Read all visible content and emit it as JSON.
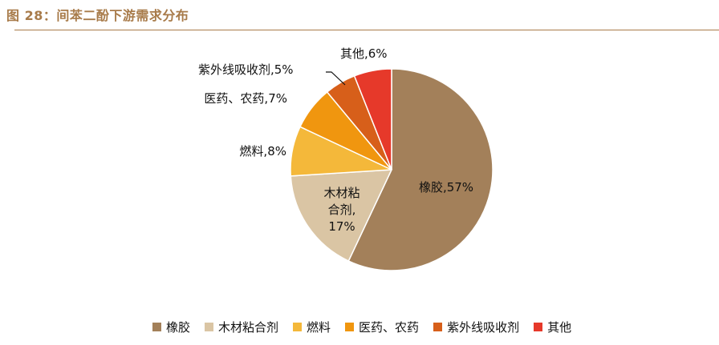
{
  "figure": {
    "title": "图 28：间苯二酚下游需求分布"
  },
  "chart_data": {
    "type": "pie",
    "title": "",
    "slices": [
      {
        "name": "橡胶",
        "value": 57,
        "color": "#A3805A",
        "label_lines": [
          "橡胶,57%"
        ]
      },
      {
        "name": "木材粘合剂",
        "value": 17,
        "color": "#DAC5A4",
        "label_lines": [
          "木材粘",
          "合剂,",
          "17%"
        ]
      },
      {
        "name": "燃料",
        "value": 8,
        "color": "#F4B83A",
        "label_lines": [
          "燃料,8%"
        ]
      },
      {
        "name": "医药、农药",
        "value": 7,
        "color": "#F0960F",
        "label_lines": [
          "医药、农药,7%"
        ]
      },
      {
        "name": "紫外线吸收剂",
        "value": 5,
        "color": "#D75F1A",
        "label_lines": [
          "紫外线吸收剂,5%"
        ]
      },
      {
        "name": "其他",
        "value": 6,
        "color": "#E6392A",
        "label_lines": [
          "其他,6%"
        ]
      }
    ],
    "legend_position": "bottom"
  }
}
